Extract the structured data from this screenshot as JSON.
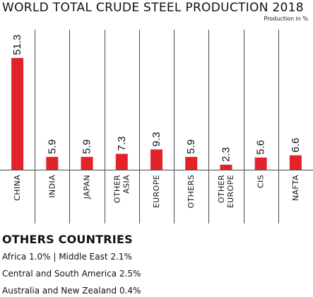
{
  "title": "WORLD TOTAL CRUDE STEEL PRODUCTION 2018",
  "unit_label": "Production in %",
  "chart_data": {
    "type": "bar",
    "title": "WORLD TOTAL CRUDE STEEL PRODUCTION 2018",
    "categories": [
      "CHINA",
      "INDIA",
      "JAPAN",
      "OTHER ASIA",
      "EUROPE",
      "OTHERS",
      "OTHER EUROPE",
      "CIS",
      "NAFTA"
    ],
    "category_lines": [
      [
        "CHINA"
      ],
      [
        "INDIA"
      ],
      [
        "JAPAN"
      ],
      [
        "OTHER",
        "ASIA"
      ],
      [
        "EUROPE"
      ],
      [
        "OTHERS"
      ],
      [
        "OTHER",
        "EUROPE"
      ],
      [
        "CIS"
      ],
      [
        "NAFTA"
      ]
    ],
    "values": [
      51.3,
      5.9,
      5.9,
      7.3,
      9.3,
      5.9,
      2.3,
      5.6,
      6.6
    ],
    "value_labels": [
      "51.3",
      "5.9",
      "5.9",
      "7.3",
      "9.3",
      "5.9",
      "2.3",
      "5.6",
      "6.6"
    ],
    "ylim": [
      0,
      51.3
    ],
    "bar_color": "#e3232b",
    "grid": "vertical separators"
  },
  "others": {
    "title": "OTHERS COUNTRIES",
    "line1": "Africa 1.0%   |  Middle East 2.1%",
    "line2": "Central and South America 2.5%",
    "line3": "Australia and New Zealand 0.4%"
  }
}
